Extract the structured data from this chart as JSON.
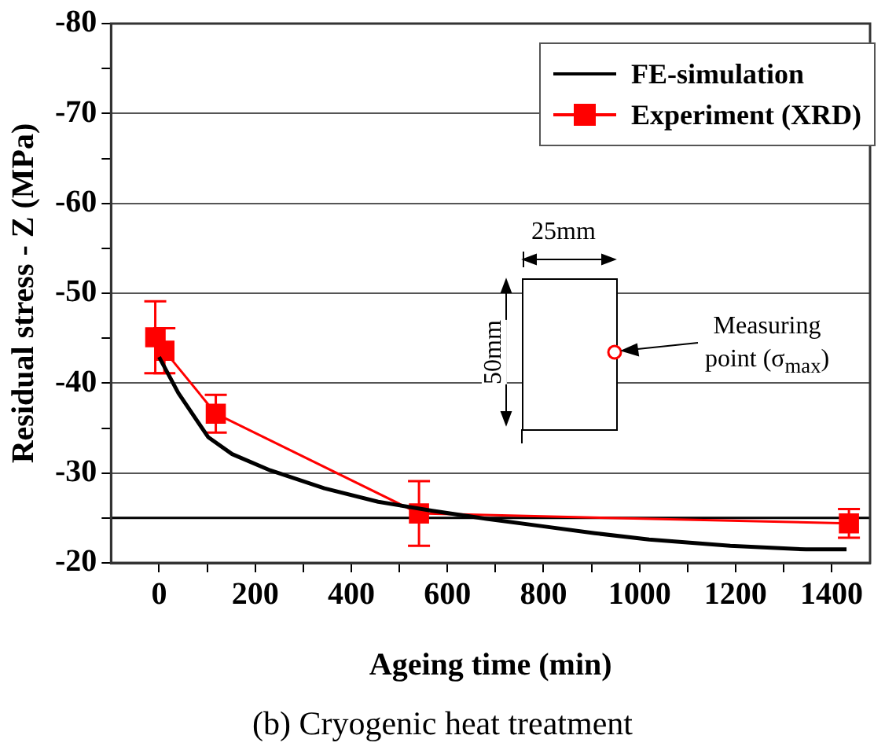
{
  "chart_data": {
    "type": "line",
    "xlabel": "Ageing time (min)",
    "ylabel": "Residual stress - Z (MPa)",
    "xlim": [
      -100,
      1480
    ],
    "xticks": [
      0,
      {
        "value": 100,
        "label": null
      },
      200,
      {
        "value": 300,
        "label": null
      },
      400,
      {
        "value": 500,
        "label": null
      },
      600,
      {
        "value": 700,
        "label": null
      },
      800,
      {
        "value": 900,
        "label": null
      },
      1000,
      {
        "value": 1100,
        "label": null
      },
      1200,
      {
        "value": 1300,
        "label": null
      },
      1400
    ],
    "ylim": [
      -20,
      -80
    ],
    "yticks": [
      -20,
      {
        "value": -25,
        "label": null
      },
      -30,
      {
        "value": -35,
        "label": null
      },
      -40,
      {
        "value": -45,
        "label": null
      },
      -50,
      {
        "value": -55,
        "label": null
      },
      -60,
      {
        "value": -65,
        "label": null
      },
      -70,
      {
        "value": -75,
        "label": null
      },
      -80
    ],
    "grid": "y",
    "legend": "top right",
    "line_style": "solid",
    "series": [
      {
        "name": "FE-simulation",
        "color": "#000000",
        "marker": "none",
        "x": [
          0,
          40,
          102,
          152,
          231,
          344,
          456,
          569,
          682,
          795,
          907,
          1020,
          1189,
          1347,
          1431
        ],
        "values": [
          -42.9,
          -38.9,
          -34.0,
          -32.1,
          -30.3,
          -28.3,
          -26.8,
          -25.8,
          -24.9,
          -24.1,
          -23.3,
          -22.6,
          -21.9,
          -21.5,
          -21.5
        ]
      },
      {
        "name": "Experiment (XRD)",
        "color": "#ff0000",
        "marker": "square",
        "x": [
          -8,
          11,
          118,
          541,
          1436
        ],
        "values": [
          -45.1,
          -43.6,
          -36.6,
          -25.5,
          -24.4
        ],
        "errors": [
          4,
          2.5,
          2.1,
          3.6,
          1.6
        ]
      }
    ],
    "ref_lines": [
      {
        "axis": "y",
        "value": -25,
        "color": "#000000",
        "line_style": "solid"
      }
    ],
    "annotations": [
      "25mm",
      "50mm",
      "Measuring point (σ$_{max}$)",
      "(b) Cryogenic heat treatment"
    ]
  }
}
